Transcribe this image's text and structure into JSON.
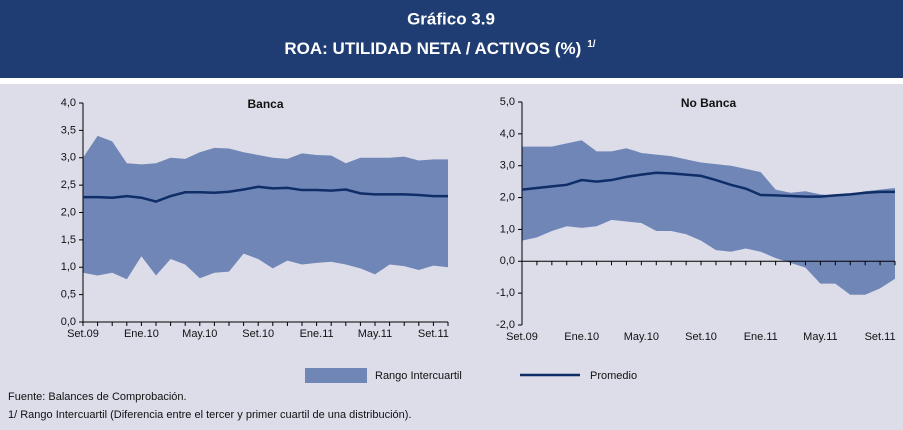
{
  "title": "Gráfico 3.9",
  "subtitle": "ROA: UTILIDAD NETA / ACTIVOS (%)",
  "subtitle_note": "1/",
  "legend": [
    {
      "name": "Rango Intercuartil",
      "color": "#6f86b6",
      "kind": "area"
    },
    {
      "name": "Promedio",
      "color": "#0f2d66",
      "kind": "line"
    }
  ],
  "notes": [
    "Fuente: Balances de Comprobación.",
    "1/ Rango Intercuartil (Diferencia entre el tercer y primer cuartil de una distribución)."
  ],
  "chart_data": [
    {
      "type": "band-line",
      "title": "Banca",
      "categories": [
        "Set.09",
        null,
        null,
        null,
        "Ene.10",
        null,
        null,
        null,
        "May.10",
        null,
        null,
        null,
        "Set.10",
        null,
        null,
        null,
        "Ene.11",
        null,
        null,
        null,
        "May.11",
        null,
        null,
        null,
        "Set.11",
        null
      ],
      "ylim": [
        0,
        4
      ],
      "yticks": [
        {
          "value": 0,
          "label": "0,0"
        },
        {
          "value": 0.5,
          "label": "0,5"
        },
        {
          "value": 1,
          "label": "1,0"
        },
        {
          "value": 1.5,
          "label": "1,5"
        },
        {
          "value": 2,
          "label": "2,0"
        },
        {
          "value": 2.5,
          "label": "2,5"
        },
        {
          "value": 3,
          "label": "3,0"
        },
        {
          "value": 3.5,
          "label": "3,5"
        },
        {
          "value": 4,
          "label": "4,0"
        }
      ],
      "band": {
        "color": "#6f86b6",
        "lower": [
          0.9,
          0.85,
          0.9,
          0.78,
          1.2,
          0.85,
          1.15,
          1.05,
          0.8,
          0.9,
          0.92,
          1.25,
          1.15,
          0.98,
          1.12,
          1.05,
          1.08,
          1.1,
          1.05,
          0.98,
          0.87,
          1.05,
          1.02,
          0.95,
          1.03,
          1.0
        ],
        "upper": [
          3.0,
          3.4,
          3.3,
          2.9,
          2.88,
          2.9,
          3.0,
          2.98,
          3.1,
          3.18,
          3.17,
          3.1,
          3.05,
          3.0,
          2.98,
          3.08,
          3.05,
          3.04,
          2.9,
          3.0,
          3.0,
          3.0,
          3.02,
          2.95,
          2.97,
          2.97
        ]
      },
      "line": {
        "color": "#0f2d66",
        "values": [
          2.28,
          2.28,
          2.27,
          2.3,
          2.27,
          2.2,
          2.3,
          2.37,
          2.37,
          2.36,
          2.38,
          2.42,
          2.47,
          2.44,
          2.45,
          2.41,
          2.41,
          2.4,
          2.42,
          2.35,
          2.33,
          2.33,
          2.33,
          2.32,
          2.3,
          2.3
        ]
      }
    },
    {
      "type": "band-line",
      "title": "No Banca",
      "categories": [
        "Set.09",
        null,
        null,
        null,
        "Ene.10",
        null,
        null,
        null,
        "May.10",
        null,
        null,
        null,
        "Set.10",
        null,
        null,
        null,
        "Ene.11",
        null,
        null,
        null,
        "May.11",
        null,
        null,
        null,
        "Set.11",
        null
      ],
      "ylim": [
        -2,
        5
      ],
      "yticks": [
        {
          "value": -2,
          "label": "-2,0"
        },
        {
          "value": -1,
          "label": "-1,0"
        },
        {
          "value": 0,
          "label": "0,0"
        },
        {
          "value": 1,
          "label": "1,0"
        },
        {
          "value": 2,
          "label": "2,0"
        },
        {
          "value": 3,
          "label": "3,0"
        },
        {
          "value": 4,
          "label": "4,0"
        },
        {
          "value": 5,
          "label": "5,0"
        }
      ],
      "band": {
        "color": "#6f86b6",
        "lower": [
          0.65,
          0.75,
          0.95,
          1.1,
          1.05,
          1.1,
          1.3,
          1.25,
          1.2,
          0.95,
          0.95,
          0.85,
          0.65,
          0.35,
          0.3,
          0.4,
          0.3,
          0.1,
          -0.05,
          -0.2,
          -0.7,
          -0.7,
          -1.05,
          -1.05,
          -0.85,
          -0.55
        ],
        "upper": [
          3.6,
          3.6,
          3.6,
          3.7,
          3.8,
          3.45,
          3.45,
          3.55,
          3.4,
          3.35,
          3.3,
          3.2,
          3.1,
          3.05,
          3.0,
          2.9,
          2.8,
          2.25,
          2.15,
          2.2,
          2.1,
          2.05,
          2.1,
          2.2,
          2.25,
          2.3
        ]
      },
      "line": {
        "color": "#0f2d66",
        "values": [
          2.25,
          2.3,
          2.35,
          2.4,
          2.55,
          2.5,
          2.55,
          2.65,
          2.72,
          2.78,
          2.76,
          2.72,
          2.68,
          2.55,
          2.4,
          2.28,
          2.08,
          2.07,
          2.05,
          2.03,
          2.03,
          2.07,
          2.1,
          2.15,
          2.18,
          2.18
        ]
      }
    }
  ]
}
